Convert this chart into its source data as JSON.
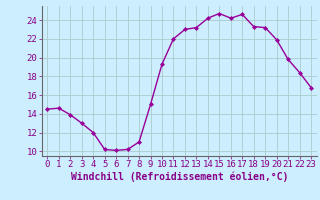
{
  "x": [
    0,
    1,
    2,
    3,
    4,
    5,
    6,
    7,
    8,
    9,
    10,
    11,
    12,
    13,
    14,
    15,
    16,
    17,
    18,
    19,
    20,
    21,
    22,
    23
  ],
  "y": [
    14.5,
    14.6,
    13.9,
    13.0,
    12.0,
    10.2,
    10.1,
    10.2,
    11.0,
    15.0,
    19.3,
    22.0,
    23.0,
    23.2,
    24.2,
    24.7,
    24.2,
    24.6,
    23.3,
    23.2,
    21.9,
    19.8,
    18.4,
    16.8
  ],
  "line_color": "#990099",
  "marker": "D",
  "markersize": 2.0,
  "linewidth": 1.0,
  "bg_color": "#cceeff",
  "grid_color": "#aacccc",
  "xlabel": "Windchill (Refroidissement éolien,°C)",
  "xlabel_color": "#880088",
  "xlabel_fontsize": 7,
  "tick_color": "#880088",
  "tick_fontsize": 6.5,
  "yticks": [
    10,
    12,
    14,
    16,
    18,
    20,
    22,
    24
  ],
  "xticks": [
    0,
    1,
    2,
    3,
    4,
    5,
    6,
    7,
    8,
    9,
    10,
    11,
    12,
    13,
    14,
    15,
    16,
    17,
    18,
    19,
    20,
    21,
    22,
    23
  ],
  "xlim": [
    -0.5,
    23.5
  ],
  "ylim": [
    9.5,
    25.5
  ]
}
